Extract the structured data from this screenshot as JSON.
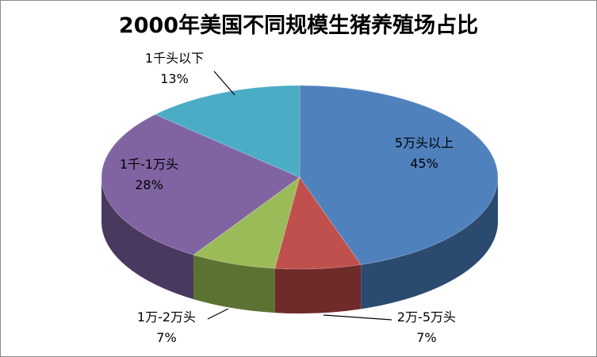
{
  "chart_data": {
    "type": "pie",
    "title": "2000年美国不同规模生猪养殖场占比",
    "categories": [
      "5万头以上",
      "2万-5万头",
      "1万-2万头",
      "1千-1万头",
      "1千头以下"
    ],
    "values": [
      45,
      7,
      7,
      28,
      13
    ],
    "value_labels": [
      "45%",
      "7%",
      "7%",
      "28%",
      "13%"
    ],
    "unit": "%",
    "style": "3d",
    "legend": "none",
    "data_labels": "category and percent",
    "colors": [
      "#4f81bd",
      "#c0504d",
      "#9bbb59",
      "#8064a2",
      "#4bacc6"
    ],
    "side_colors": [
      "#2b4a70",
      "#6e2b29",
      "#5c7233",
      "#4a395f",
      "#2a6678"
    ]
  }
}
